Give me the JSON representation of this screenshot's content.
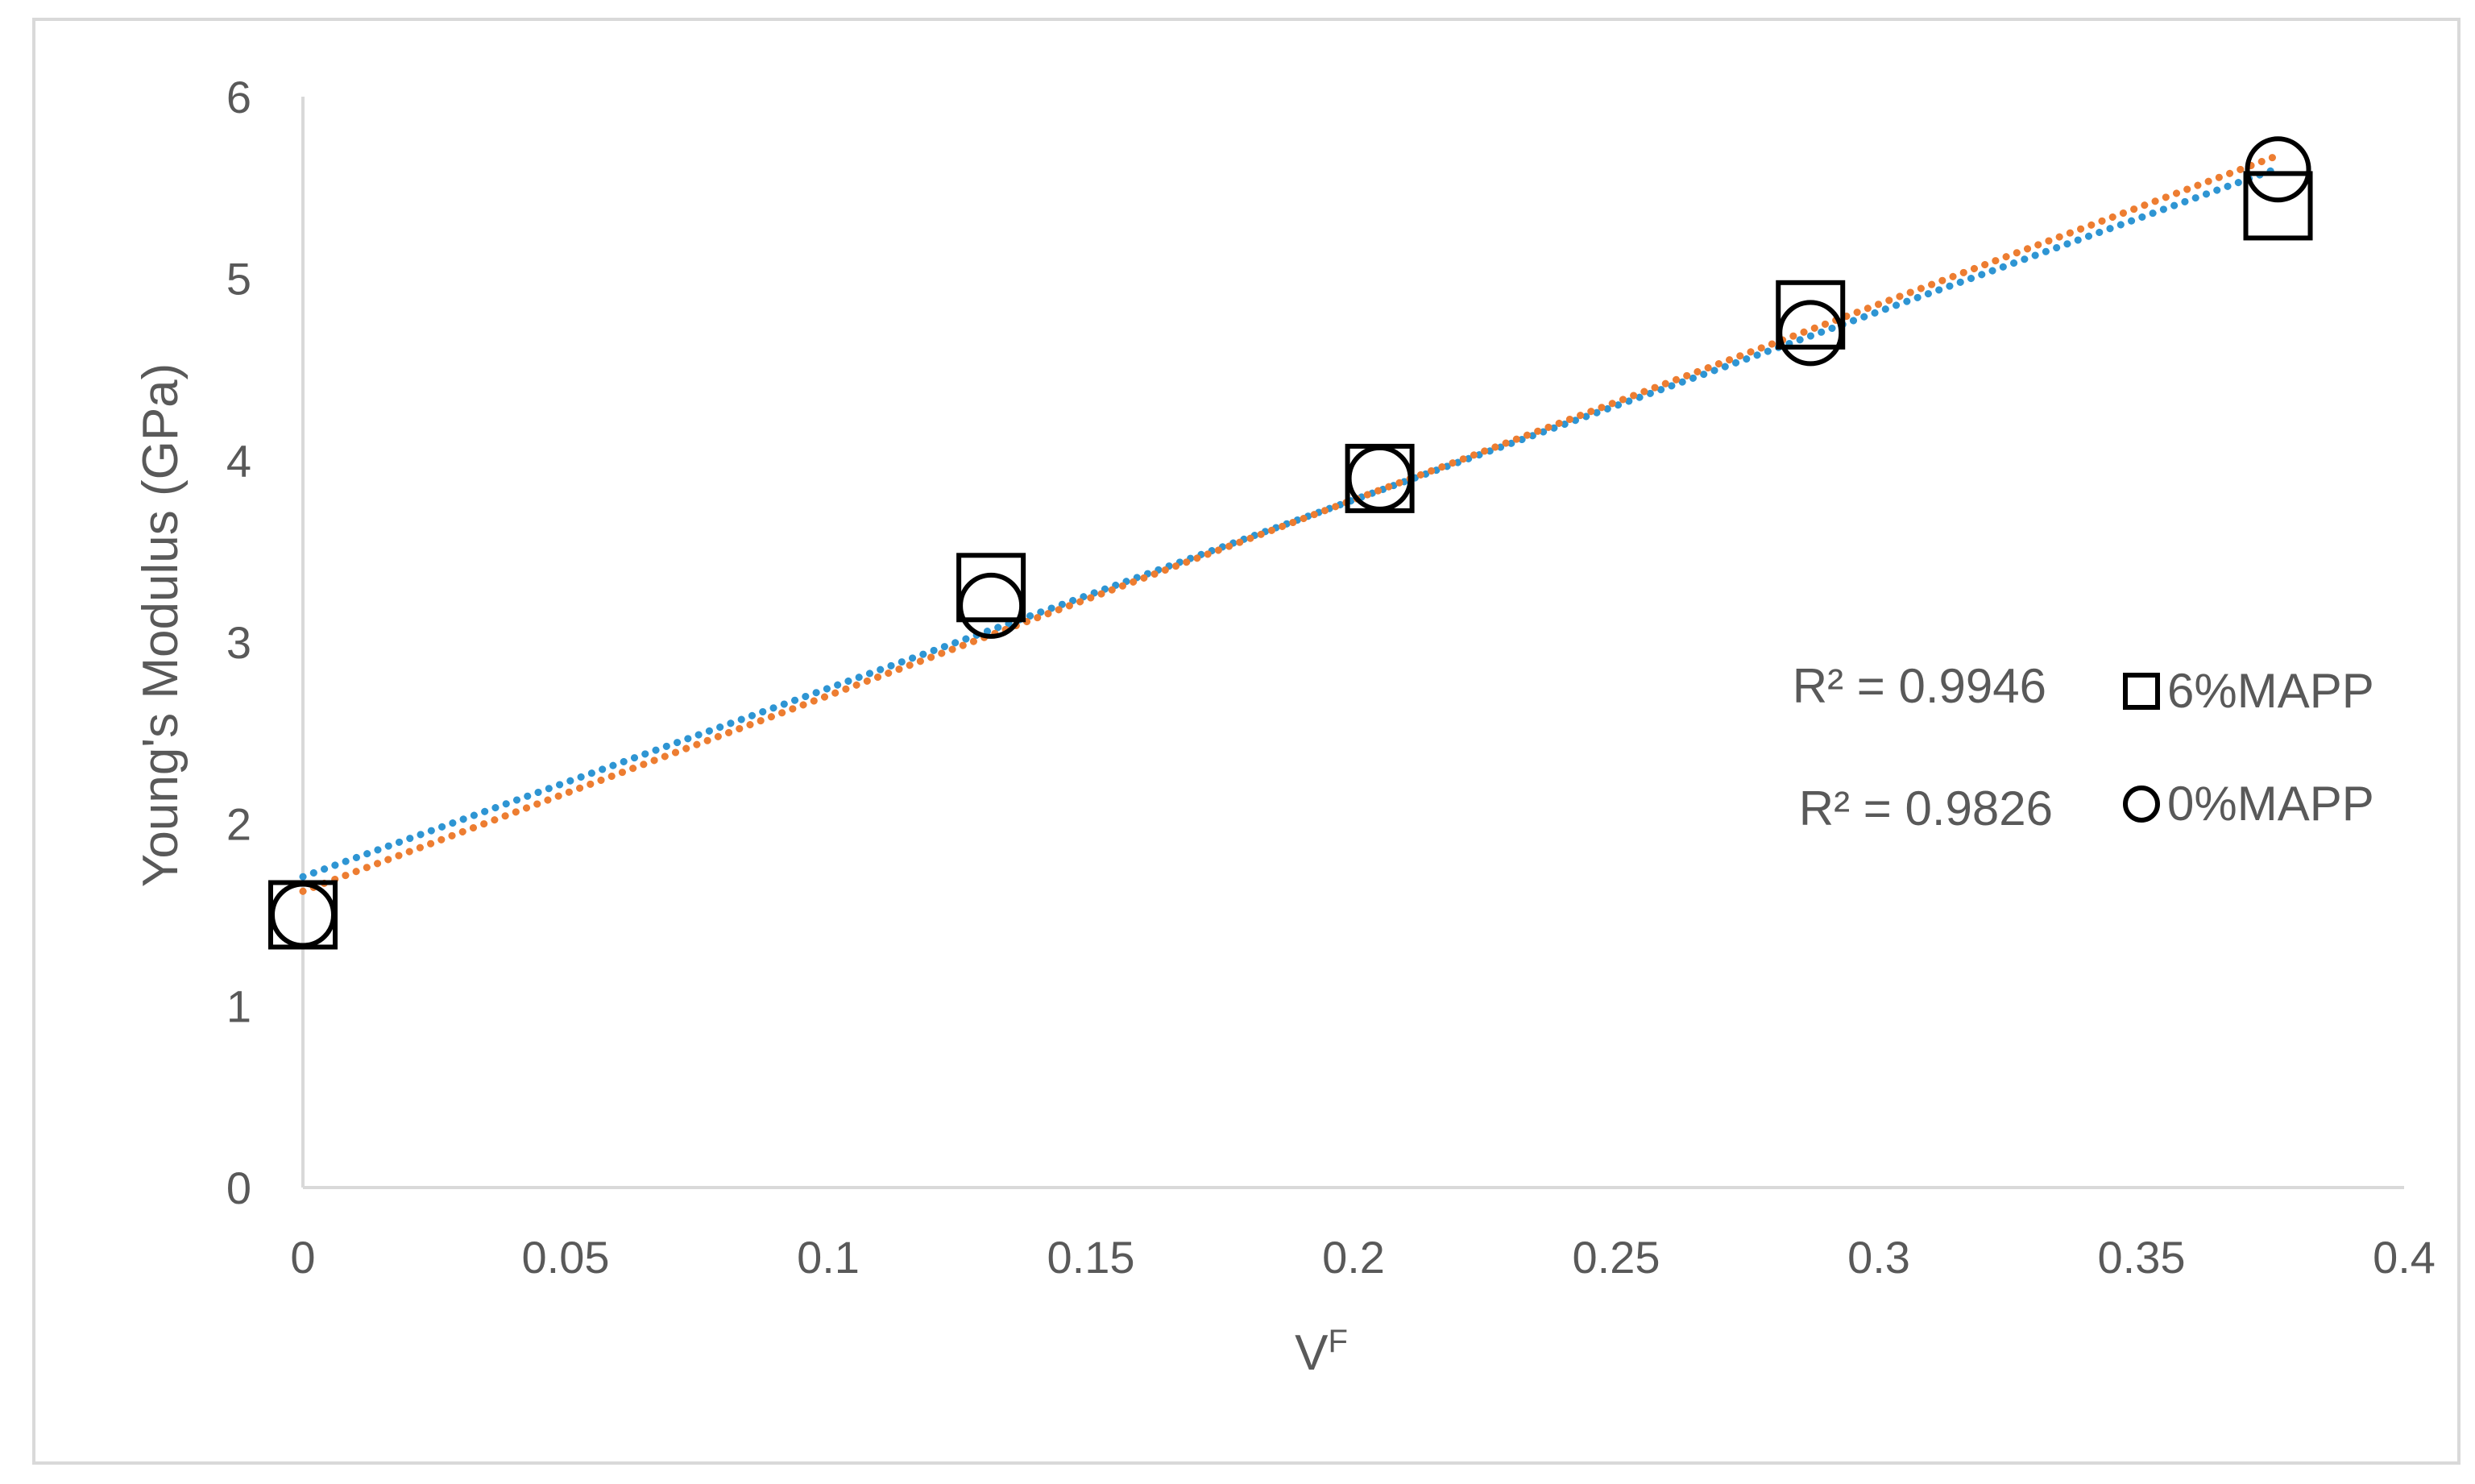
{
  "chart_data": {
    "type": "scatter",
    "xlabel": "V",
    "xlabel_superscript": "F",
    "ylabel": "Young's Modulus (GPa)",
    "xlim": [
      0,
      0.4
    ],
    "ylim": [
      0,
      6
    ],
    "x_ticks": [
      "0",
      "0.05",
      "0.1",
      "0.15",
      "0.2",
      "0.25",
      "0.3",
      "0.35",
      "0.4"
    ],
    "y_ticks": [
      "0",
      "1",
      "2",
      "3",
      "4",
      "5",
      "6"
    ],
    "grid": false,
    "legend_position": "right",
    "series": [
      {
        "name": "6%MAPP",
        "marker": "square",
        "trendline": "linear",
        "trend_color": "#2e95d3",
        "r2_label": "R² = 0.9946",
        "x": [
          0,
          0.131,
          0.205,
          0.287,
          0.376
        ],
        "y": [
          1.5,
          3.3,
          3.9,
          4.8,
          5.4
        ]
      },
      {
        "name": "0%MAPP",
        "marker": "circle",
        "trendline": "linear",
        "trend_color": "#ed7d31",
        "r2_label": "R² = 0.9826",
        "x": [
          0,
          0.131,
          0.205,
          0.287,
          0.376
        ],
        "y": [
          1.5,
          3.2,
          3.9,
          4.7,
          5.6
        ]
      }
    ]
  }
}
